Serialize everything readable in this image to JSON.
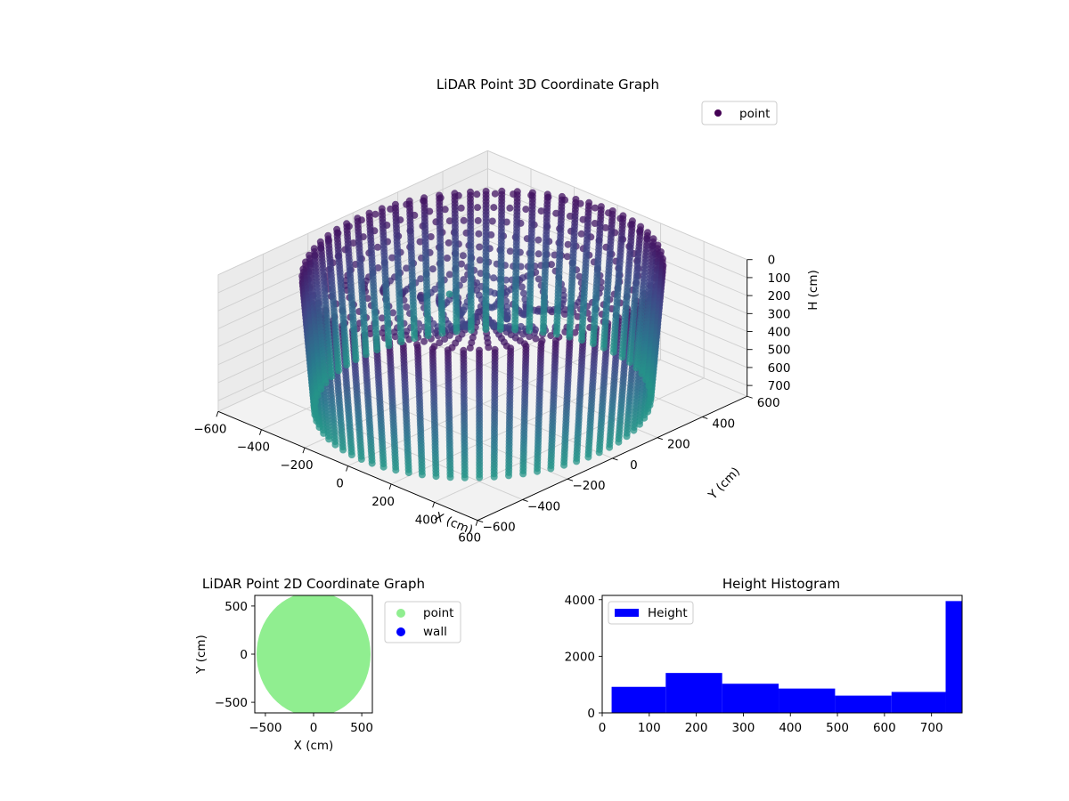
{
  "chart_data": [
    {
      "type": "scatter",
      "projection": "3d",
      "title": "LiDAR Point 3D Coordinate Graph",
      "xlabel": "X (cm)",
      "ylabel": "Y (cm)",
      "zlabel": "H (cm)",
      "xlim": [
        -600,
        600
      ],
      "ylim": [
        -600,
        600
      ],
      "zlim": [
        0,
        760
      ],
      "z_inverted": true,
      "x_ticks": [
        "−600",
        "−400",
        "−200",
        "0",
        "200",
        "400",
        "600"
      ],
      "y_ticks": [
        "−600",
        "−400",
        "−200",
        "0",
        "200",
        "400",
        "600"
      ],
      "z_ticks": [
        "0",
        "100",
        "200",
        "300",
        "400",
        "500",
        "600",
        "700"
      ],
      "legend": {
        "label": "point",
        "position": "top-right"
      },
      "colormap": "viridis (by height)",
      "shape": "cylindrical wall of vertical point columns, radius ~580, height 0-760, with ceiling points converging toward the centre",
      "outlier": {
        "x": -600,
        "y": 430,
        "h": 700
      }
    },
    {
      "type": "scatter",
      "title": "LiDAR Point 2D Coordinate Graph",
      "xlabel": "X (cm)",
      "ylabel": "Y (cm)",
      "xlim": [
        -610,
        610
      ],
      "ylim": [
        -610,
        610
      ],
      "x_ticks": [
        "−500",
        "0",
        "500"
      ],
      "y_ticks": [
        "−500",
        "0",
        "500"
      ],
      "series": [
        {
          "name": "point",
          "color": "#90ee90",
          "shape": "filled disk, radius ~580"
        },
        {
          "name": "wall",
          "color": "#0000ff"
        }
      ],
      "legend_position": "right, outside"
    },
    {
      "type": "bar",
      "title": "Height Histogram",
      "ylim": [
        0,
        4150
      ],
      "xlim": [
        0,
        765
      ],
      "x_ticks": [
        "0",
        "100",
        "200",
        "300",
        "400",
        "500",
        "600",
        "700"
      ],
      "y_ticks": [
        "0",
        "2000",
        "4000"
      ],
      "series": [
        {
          "name": "Height",
          "color": "#0000ff",
          "bins": [
            {
              "x0": 20,
              "x1": 135,
              "count": 920
            },
            {
              "x0": 135,
              "x1": 255,
              "count": 1410
            },
            {
              "x0": 255,
              "x1": 375,
              "count": 1030
            },
            {
              "x0": 375,
              "x1": 495,
              "count": 860
            },
            {
              "x0": 495,
              "x1": 615,
              "count": 610
            },
            {
              "x0": 615,
              "x1": 730,
              "count": 740
            },
            {
              "x0": 730,
              "x1": 765,
              "count": 3950
            }
          ]
        }
      ],
      "legend_position": "top-left"
    }
  ]
}
